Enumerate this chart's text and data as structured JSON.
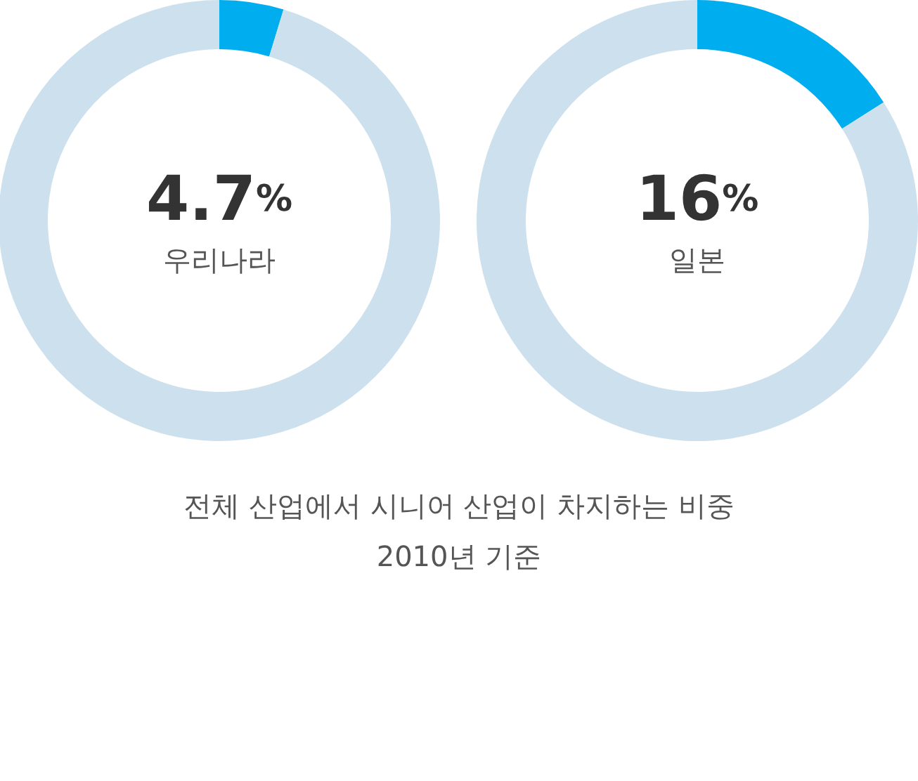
{
  "chart_data": [
    {
      "type": "donut",
      "categories": [
        "우리나라",
        null
      ],
      "values": [
        4.7,
        95.3
      ],
      "colors": [
        "#00aeef",
        "#cde0ee"
      ],
      "value_labels": [
        "4.7%",
        null
      ],
      "legend": false,
      "annotations": [
        "전체 산업에서 시니어 산업이 차지하는 비중",
        "2010년 기준"
      ]
    },
    {
      "type": "donut",
      "categories": [
        "일본",
        null
      ],
      "values": [
        16,
        84
      ],
      "colors": [
        "#00aeef",
        "#cde0ee"
      ],
      "value_labels": [
        "16%",
        null
      ],
      "legend": false
    }
  ]
}
